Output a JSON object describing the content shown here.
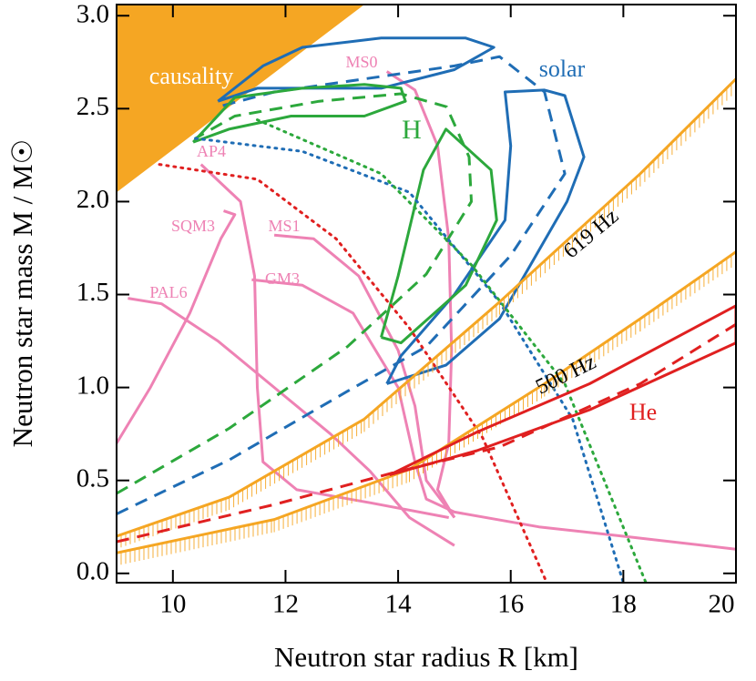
{
  "chart_data": {
    "type": "line",
    "x_label": "Neutron star radius R [km]",
    "y_label": "Neutron star mass M / M☉",
    "xlim": [
      9,
      20
    ],
    "ylim": [
      -0.05,
      3.06
    ],
    "xticks": [
      10,
      12,
      14,
      16,
      18,
      20
    ],
    "yticks": [
      {
        "value": 0,
        "label": "0.0"
      },
      {
        "value": 0.5,
        "label": "0.5"
      },
      {
        "value": 1,
        "label": "1.0"
      },
      {
        "value": 1.5,
        "label": "1.5"
      },
      {
        "value": 2,
        "label": "2.0"
      },
      {
        "value": 2.5,
        "label": "2.5"
      },
      {
        "value": 3,
        "label": "3.0"
      }
    ],
    "grid": false,
    "series": [
      {
        "name": "causality",
        "color": "#f5a623",
        "style": "fill-above",
        "x": [
          9,
          13.4
        ],
        "values": [
          2.05,
          3.06
        ]
      },
      {
        "name": "MS0",
        "color": "#ee82b4",
        "style": "solid",
        "x": [
          13.8,
          14.3,
          14.7,
          14.9,
          14.95,
          14.9,
          14.7,
          15.0
        ],
        "values": [
          2.7,
          2.6,
          2.3,
          1.8,
          1.2,
          0.7,
          0.45,
          0.3
        ]
      },
      {
        "name": "AP4",
        "color": "#ee82b4",
        "style": "solid",
        "x": [
          10.5,
          11.2,
          11.45,
          11.5,
          11.6,
          12.2,
          13.5,
          14.9
        ],
        "values": [
          2.2,
          2.0,
          1.6,
          1.0,
          0.6,
          0.45,
          0.38,
          0.3
        ]
      },
      {
        "name": "SQM3",
        "color": "#ee82b4",
        "style": "solid",
        "x": [
          9.0,
          9.6,
          10.3,
          10.85,
          11.1,
          10.9
        ],
        "values": [
          0.7,
          1.0,
          1.4,
          1.8,
          1.93,
          1.95
        ]
      },
      {
        "name": "MS1",
        "color": "#ee82b4",
        "style": "solid",
        "x": [
          11.8,
          12.5,
          13.3,
          14.0,
          14.3,
          14.5,
          15.0
        ],
        "values": [
          1.82,
          1.8,
          1.6,
          1.2,
          0.9,
          0.5,
          0.3
        ]
      },
      {
        "name": "PAL6",
        "color": "#ee82b4",
        "style": "solid",
        "x": [
          9.2,
          9.8,
          10.8,
          11.8,
          12.8,
          13.5,
          14.2,
          15.0
        ],
        "values": [
          1.48,
          1.45,
          1.25,
          1.0,
          0.75,
          0.55,
          0.3,
          0.15
        ]
      },
      {
        "name": "GM3",
        "color": "#ee82b4",
        "style": "solid",
        "x": [
          11.4,
          12.3,
          13.2,
          14.0,
          14.3,
          14.5,
          15.0,
          16.5,
          18.0,
          20.0
        ],
        "values": [
          1.58,
          1.55,
          1.4,
          1.0,
          0.6,
          0.4,
          0.33,
          0.25,
          0.2,
          0.13
        ]
      },
      {
        "name": "solar",
        "color": "#1f6db5",
        "style": "solid",
        "x": [
          13.8,
          14.85,
          15.8,
          17.0,
          17.3,
          16.96,
          16.6,
          15.9,
          16.0,
          15.9,
          15.0,
          14.05,
          13.8,
          null,
          10.8,
          11.6,
          12.3,
          13.7,
          15.2,
          15.7,
          15.0,
          13.7,
          12.3,
          11.5,
          10.8
        ],
        "values": [
          1.02,
          1.12,
          1.37,
          2.0,
          2.24,
          2.57,
          2.6,
          2.59,
          2.3,
          1.9,
          1.5,
          1.17,
          1.02,
          null,
          2.54,
          2.73,
          2.83,
          2.88,
          2.88,
          2.83,
          2.71,
          2.61,
          2.61,
          2.61,
          2.54
        ]
      },
      {
        "color": "#1f6db5",
        "style": "dashed",
        "x": [
          9.0,
          11.0,
          13.1,
          14.5,
          16.0,
          16.96,
          16.6,
          15.8,
          15.0,
          13.4,
          11.8,
          10.8
        ],
        "values": [
          0.32,
          0.61,
          0.98,
          1.22,
          1.71,
          2.15,
          2.59,
          2.78,
          2.73,
          2.66,
          2.59,
          2.51
        ]
      },
      {
        "name": "H",
        "color": "#2ca83c",
        "style": "solid",
        "x": [
          13.7,
          14.0,
          14.45,
          14.85,
          15.65,
          15.75,
          15.2,
          14.05,
          13.7,
          null,
          10.36,
          11.1,
          12.3,
          13.4,
          14.05,
          14.13,
          13.4,
          12.1,
          11.0,
          10.36
        ],
        "values": [
          1.27,
          1.6,
          2.17,
          2.39,
          2.17,
          1.9,
          1.55,
          1.24,
          1.27,
          null,
          2.32,
          2.56,
          2.61,
          2.63,
          2.61,
          2.54,
          2.46,
          2.46,
          2.39,
          2.32
        ]
      },
      {
        "color": "#2ca83c",
        "style": "dashed",
        "x": [
          9.0,
          11.0,
          13.1,
          14.5,
          15.3,
          15.26,
          14.86,
          14.05,
          12.6,
          11.1,
          10.4
        ],
        "values": [
          0.43,
          0.78,
          1.22,
          1.61,
          2.0,
          2.24,
          2.51,
          2.58,
          2.54,
          2.46,
          2.34
        ]
      },
      {
        "color": "#1f6db5",
        "style": "dotted",
        "x": [
          10.4,
          12.3,
          14.2,
          15.8,
          17.1,
          18.0
        ],
        "values": [
          2.34,
          2.27,
          2.05,
          1.46,
          0.83,
          -0.05
        ]
      },
      {
        "color": "#2ca83c",
        "style": "dotted",
        "x": [
          11.5,
          13.7,
          15.3,
          16.96,
          18.4
        ],
        "values": [
          2.44,
          2.15,
          1.66,
          1.02,
          -0.05
        ]
      },
      {
        "color": "#e02020",
        "style": "dotted",
        "x": [
          9.76,
          11.5,
          12.9,
          14.2,
          15.5,
          16.64
        ],
        "values": [
          2.2,
          2.12,
          1.8,
          1.32,
          0.73,
          -0.05
        ]
      },
      {
        "name": "619 Hz",
        "color": "#f5a623",
        "style": "hatched",
        "x": [
          9.0,
          11.0,
          13.4,
          15.8,
          18.3,
          20.0
        ],
        "values": [
          0.2,
          0.41,
          0.83,
          1.46,
          2.15,
          2.66
        ]
      },
      {
        "name": "500 Hz",
        "color": "#f5a623",
        "style": "hatched",
        "x": [
          9.0,
          11.8,
          14.2,
          16.6,
          18.3,
          20.0
        ],
        "values": [
          0.11,
          0.29,
          0.56,
          1.02,
          1.37,
          1.73
        ]
      },
      {
        "name": "He",
        "color": "#e02020",
        "style": "solid",
        "x": [
          13.85,
          15.4,
          17.4,
          20.0,
          20.0,
          17.4,
          15.4,
          13.85
        ],
        "values": [
          0.53,
          0.76,
          1.02,
          1.44,
          1.24,
          0.88,
          0.66,
          0.53
        ]
      },
      {
        "color": "#e02020",
        "style": "dashed",
        "x": [
          9.0,
          11.8,
          13.9,
          15.8,
          18.3,
          20.0
        ],
        "values": [
          0.17,
          0.37,
          0.54,
          0.68,
          1.02,
          1.34
        ]
      }
    ]
  }
}
